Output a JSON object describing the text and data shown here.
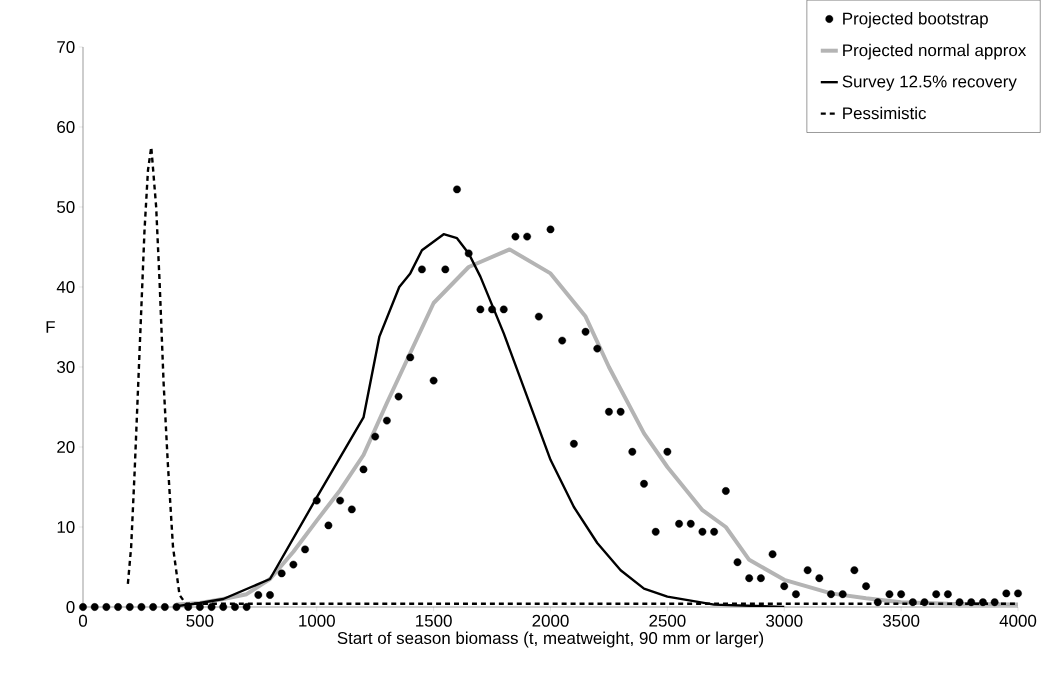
{
  "chart_data": {
    "type": "scatter",
    "xlabel": "Start of season biomass (t, meatweight, 90 mm or larger)",
    "ylabel": "F",
    "xlim": [
      0,
      4000
    ],
    "ylim": [
      0,
      70
    ],
    "xticks": [
      0,
      500,
      1000,
      1500,
      2000,
      2500,
      3000,
      3500,
      4000
    ],
    "yticks": [
      0,
      10,
      20,
      30,
      40,
      50,
      60,
      70
    ],
    "grid": false,
    "legend": "top right",
    "series": [
      {
        "name": "Projected bootstrap",
        "color": "#000000",
        "marker": "circle",
        "x": [
          0,
          50,
          100,
          150,
          200,
          250,
          300,
          350,
          400,
          450,
          500,
          550,
          600,
          650,
          700,
          750,
          800,
          850,
          900,
          950,
          1000,
          1050,
          1100,
          1150,
          1200,
          1250,
          1300,
          1350,
          1400,
          1450,
          1500,
          1550,
          1600,
          1650,
          1700,
          1750,
          1800,
          1850,
          1900,
          1950,
          2000,
          2050,
          2100,
          2150,
          2200,
          2250,
          2300,
          2350,
          2400,
          2450,
          2500,
          2550,
          2600,
          2650,
          2700,
          2750,
          2800,
          2850,
          2900,
          2950,
          3000,
          3050,
          3100,
          3150,
          3200,
          3250,
          3300,
          3350,
          3400,
          3450,
          3500,
          3550,
          3600,
          3650,
          3700,
          3750,
          3800,
          3850,
          3900,
          3950,
          4000
        ],
        "values": [
          0,
          0,
          0,
          0,
          0,
          0,
          0,
          0,
          0,
          0,
          0,
          0,
          0,
          0,
          0,
          1.5,
          1.5,
          4.2,
          5.3,
          7.2,
          13.3,
          10.2,
          13.3,
          12.2,
          17.2,
          21.3,
          23.3,
          26.3,
          31.2,
          42.2,
          28.3,
          42.2,
          52.2,
          44.2,
          37.2,
          37.2,
          37.2,
          46.3,
          46.3,
          36.3,
          47.2,
          33.3,
          20.4,
          34.4,
          32.3,
          24.4,
          24.4,
          19.4,
          15.4,
          9.4,
          19.4,
          10.4,
          10.4,
          9.4,
          9.4,
          14.5,
          5.6,
          3.6,
          3.6,
          6.6,
          2.6,
          1.6,
          4.6,
          3.6,
          1.6,
          1.6,
          4.6,
          2.6,
          0.6,
          1.6,
          1.6,
          0.6,
          0.6,
          1.6,
          1.6,
          0.6,
          0.6,
          0.6,
          0.6,
          1.7,
          1.7
        ]
      },
      {
        "name": "Projected normal approx",
        "type": "line",
        "color": "#b4b4b4",
        "marker": "none",
        "line_style": "solid",
        "x": [
          400,
          500,
          600,
          700,
          800,
          900,
          1000,
          1100,
          1200,
          1300,
          1500,
          1650,
          1825,
          2000,
          2150,
          2250,
          2400,
          2500,
          2650,
          2750,
          2850,
          3000,
          3200,
          3350,
          3500,
          3700,
          4000
        ],
        "values": [
          0.3,
          0.5,
          1,
          1.6,
          3.5,
          6.9,
          10.8,
          14.6,
          19,
          25.5,
          38,
          42.5,
          44.7,
          41.7,
          36.3,
          30,
          21.7,
          17.5,
          12.1,
          10,
          5.9,
          3.4,
          1.7,
          1.1,
          0.6,
          0.4,
          0.3
        ]
      },
      {
        "name": "Survey 12.5% recovery",
        "type": "line",
        "color": "#000000",
        "marker": "none",
        "line_style": "solid",
        "x": [
          400,
          500,
          600,
          800,
          1000,
          1200,
          1268,
          1353,
          1400,
          1450,
          1543,
          1600,
          1650,
          1700,
          1800,
          1900,
          2000,
          2100,
          2200,
          2300,
          2400,
          2500,
          2700,
          3000
        ],
        "values": [
          0.1,
          0.5,
          1,
          3.5,
          13.7,
          23.7,
          33.8,
          40,
          41.7,
          44.6,
          46.6,
          46.1,
          44.2,
          41.3,
          34.2,
          26.3,
          18.4,
          12.5,
          8,
          4.6,
          2.3,
          1.3,
          0.3,
          0
        ]
      },
      {
        "name": "Pessimistic",
        "type": "line",
        "color": "#000000",
        "marker": "none",
        "line_style": "dashed",
        "x": [
          192,
          206,
          221,
          235,
          249,
          263,
          278,
          292,
          313,
          328,
          345,
          363,
          385,
          413,
          440,
          1000,
          2000,
          3000,
          4000
        ],
        "values": [
          2.9,
          7.5,
          17,
          27,
          37,
          47,
          54.6,
          57.5,
          50,
          40.4,
          27.9,
          17.9,
          7.5,
          1.5,
          0.4,
          0.4,
          0.4,
          0.4,
          0.4
        ]
      }
    ]
  }
}
